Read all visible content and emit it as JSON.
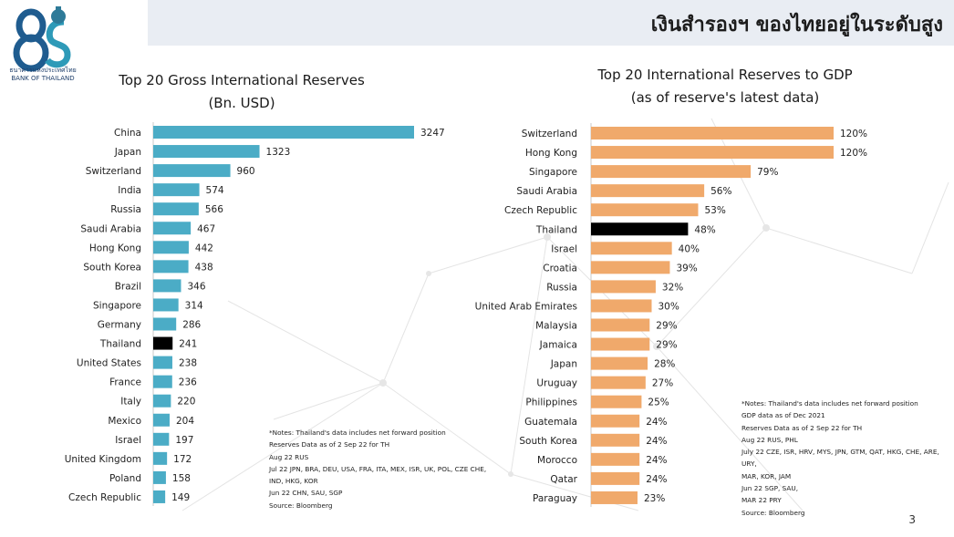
{
  "header": {
    "title": "เงินสำรองฯ ของไทยอยู่ในระดับสูง"
  },
  "logo": {
    "name_th": "ธนาคารแห่งประเทศไทย",
    "name_en": "BANK OF THAILAND",
    "icon": "bot-85-logo",
    "numeral": "85"
  },
  "colors": {
    "left_bar": "#4bacc6",
    "right_bar": "#f0a96b",
    "highlight": "#000000",
    "header_band": "#e9edf3"
  },
  "chart_data": [
    {
      "type": "bar",
      "orientation": "horizontal",
      "title": "Top 20 Gross International Reserves",
      "subtitle": "(Bn. USD)",
      "highlight": "Thailand",
      "categories": [
        "China",
        "Japan",
        "Switzerland",
        "India",
        "Russia",
        "Saudi Arabia",
        "Hong Kong",
        "South Korea",
        "Brazil",
        "Singapore",
        "Germany",
        "Thailand",
        "United States",
        "France",
        "Italy",
        "Mexico",
        "Israel",
        "United Kingdom",
        "Poland",
        "Czech Republic"
      ],
      "values": [
        3247,
        1323,
        960,
        574,
        566,
        467,
        442,
        438,
        346,
        314,
        286,
        241,
        238,
        236,
        220,
        204,
        197,
        172,
        158,
        149
      ],
      "value_labels": [
        "3247",
        "1323",
        "960",
        "574",
        "566",
        "467",
        "442",
        "438",
        "346",
        "314",
        "286",
        "241",
        "238",
        "236",
        "220",
        "204",
        "197",
        "172",
        "158",
        "149"
      ],
      "xlim": [
        0,
        3300
      ],
      "grid": false,
      "legend": "none"
    },
    {
      "type": "bar",
      "orientation": "horizontal",
      "title": "Top 20 International Reserves to GDP",
      "subtitle": "(as of reserve's latest data)",
      "highlight": "Thailand",
      "categories": [
        "Switzerland",
        "Hong Kong",
        "Singapore",
        "Saudi Arabia",
        "Czech Republic",
        "Thailand",
        "Israel",
        "Croatia",
        "Russia",
        "United Arab Emirates",
        "Malaysia",
        "Jamaica",
        "Japan",
        "Uruguay",
        "Philippines",
        "Guatemala",
        "South Korea",
        "Morocco",
        "Qatar",
        "Paraguay"
      ],
      "values": [
        120,
        120,
        79,
        56,
        53,
        48,
        40,
        39,
        32,
        30,
        29,
        29,
        28,
        27,
        25,
        24,
        24,
        24,
        24,
        23
      ],
      "value_labels": [
        "120%",
        "120%",
        "79%",
        "56%",
        "53%",
        "48%",
        "40%",
        "39%",
        "32%",
        "30%",
        "29%",
        "29%",
        "28%",
        "27%",
        "25%",
        "24%",
        "24%",
        "24%",
        "24%",
        "23%"
      ],
      "xlim": [
        0,
        122
      ],
      "grid": false,
      "legend": "none"
    }
  ],
  "left_notes": [
    "*Notes: Thailand's data includes net forward position",
    "Reserves Data as of 2 Sep 22 for TH",
    "Aug 22 RUS",
    "Jul 22 JPN, BRA, DEU, USA, FRA, ITA, MEX, ISR, UK, POL, CZE CHE,",
    "IND, HKG, KOR",
    "Jun 22 CHN, SAU, SGP",
    "Source: Bloomberg"
  ],
  "right_notes": [
    "*Notes: Thailand's data includes net forward position",
    "GDP data as of Dec 2021",
    "Reserves Data as of 2 Sep 22 for TH",
    "Aug 22  RUS, PHL",
    "July 22  CZE, ISR, HRV, MYS, JPN, GTM, QAT, HKG, CHE, ARE, URY,",
    "MAR, KOR, JAM",
    "Jun 22   SGP, SAU,",
    "MAR 22  PRY",
    "Source: Bloomberg"
  ],
  "page": {
    "number": "3"
  }
}
